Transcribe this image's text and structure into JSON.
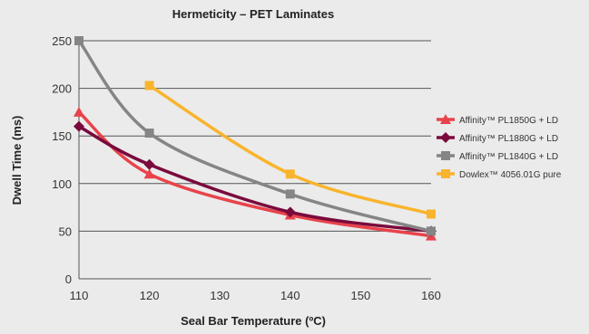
{
  "chart_data": {
    "type": "line",
    "title": "Hermeticity – PET Laminates",
    "xlabel": "Seal Bar Temperature (ºC)",
    "ylabel": "Dwell Time (ms)",
    "xlim": [
      110,
      160
    ],
    "ylim": [
      0,
      250
    ],
    "x_ticks": [
      110,
      120,
      130,
      140,
      150,
      160
    ],
    "y_ticks": [
      0,
      50,
      100,
      150,
      200,
      250
    ],
    "grid": "horizontal",
    "legend_position": "right",
    "series": [
      {
        "name": "Affinity™ PL1850G + LD",
        "color": "#e8434b",
        "marker": "triangle",
        "x": [
          110,
          120,
          140,
          160
        ],
        "y": [
          175,
          110,
          67,
          45
        ]
      },
      {
        "name": "Affinity™ PL1880G + LD",
        "color": "#7a0a3c",
        "marker": "diamond",
        "x": [
          110,
          120,
          140,
          160
        ],
        "y": [
          160,
          120,
          70,
          50
        ]
      },
      {
        "name": "Affinity™ PL1840G + LD",
        "color": "#858585",
        "marker": "square",
        "x": [
          110,
          120,
          140,
          160
        ],
        "y": [
          250,
          153,
          89,
          50
        ]
      },
      {
        "name": "Dowlex™ 4056.01G pure",
        "color": "#f9b42d",
        "marker": "square",
        "x": [
          120,
          140,
          160
        ],
        "y": [
          203,
          110,
          68
        ]
      }
    ]
  }
}
